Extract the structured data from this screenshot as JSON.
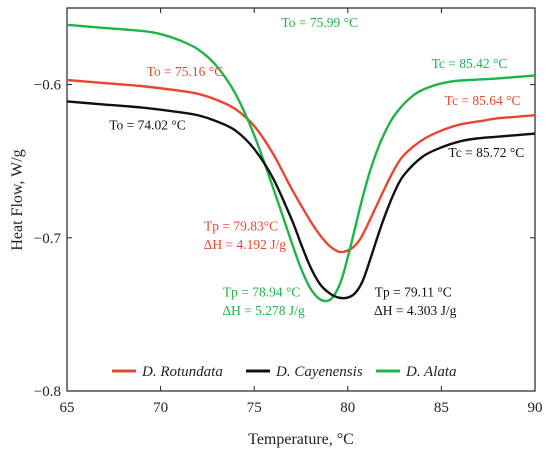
{
  "chart_data": {
    "type": "line",
    "xlabel": "Temperature, °C",
    "ylabel": "Heat Flow, W/g",
    "xlim": [
      65,
      90
    ],
    "ylim": [
      -0.8,
      -0.55
    ],
    "x_ticks": [
      65,
      70,
      75,
      80,
      85,
      90
    ],
    "y_ticks": [
      -0.6,
      -0.7,
      -0.8
    ],
    "x_tick_labels": [
      "65",
      "70",
      "75",
      "80",
      "85",
      "90"
    ],
    "y_tick_labels": [
      "−0.6",
      "−0.7",
      "−0.8"
    ],
    "grid": false,
    "legend_position": "bottom",
    "series": [
      {
        "name": "D. Rotundata",
        "color": "#e8462f",
        "points": [
          [
            65,
            -0.597
          ],
          [
            67,
            -0.599
          ],
          [
            69,
            -0.601
          ],
          [
            71,
            -0.604
          ],
          [
            72,
            -0.606
          ],
          [
            73,
            -0.61
          ],
          [
            74,
            -0.616
          ],
          [
            75,
            -0.627
          ],
          [
            76,
            -0.645
          ],
          [
            77,
            -0.668
          ],
          [
            78,
            -0.689
          ],
          [
            78.5,
            -0.698
          ],
          [
            79,
            -0.705
          ],
          [
            79.5,
            -0.709
          ],
          [
            79.83,
            -0.709
          ],
          [
            80.2,
            -0.707
          ],
          [
            80.6,
            -0.702
          ],
          [
            81,
            -0.693
          ],
          [
            81.5,
            -0.68
          ],
          [
            82,
            -0.667
          ],
          [
            82.5,
            -0.655
          ],
          [
            83,
            -0.646
          ],
          [
            84,
            -0.636
          ],
          [
            85,
            -0.63
          ],
          [
            86,
            -0.626
          ],
          [
            87,
            -0.624
          ],
          [
            88,
            -0.622
          ],
          [
            89,
            -0.621
          ],
          [
            90,
            -0.62
          ]
        ]
      },
      {
        "name": "D. Cayenensis",
        "color": "#111111",
        "points": [
          [
            65,
            -0.611
          ],
          [
            67,
            -0.613
          ],
          [
            69,
            -0.615
          ],
          [
            71,
            -0.618
          ],
          [
            72,
            -0.62
          ],
          [
            73,
            -0.624
          ],
          [
            74,
            -0.63
          ],
          [
            75,
            -0.642
          ],
          [
            76,
            -0.661
          ],
          [
            77,
            -0.688
          ],
          [
            77.5,
            -0.704
          ],
          [
            78,
            -0.719
          ],
          [
            78.5,
            -0.73
          ],
          [
            79,
            -0.736
          ],
          [
            79.5,
            -0.739
          ],
          [
            80,
            -0.739
          ],
          [
            80.4,
            -0.736
          ],
          [
            80.8,
            -0.728
          ],
          [
            81.2,
            -0.714
          ],
          [
            81.6,
            -0.699
          ],
          [
            82,
            -0.685
          ],
          [
            82.5,
            -0.67
          ],
          [
            83,
            -0.659
          ],
          [
            84,
            -0.647
          ],
          [
            85,
            -0.641
          ],
          [
            86,
            -0.637
          ],
          [
            87,
            -0.635
          ],
          [
            88,
            -0.634
          ],
          [
            89,
            -0.633
          ],
          [
            90,
            -0.632
          ]
        ]
      },
      {
        "name": "D. Alata",
        "color": "#1fb34a",
        "points": [
          [
            65,
            -0.561
          ],
          [
            67,
            -0.563
          ],
          [
            69,
            -0.565
          ],
          [
            70,
            -0.567
          ],
          [
            71,
            -0.571
          ],
          [
            72,
            -0.577
          ],
          [
            73,
            -0.588
          ],
          [
            74,
            -0.606
          ],
          [
            75,
            -0.633
          ],
          [
            76,
            -0.667
          ],
          [
            77,
            -0.703
          ],
          [
            77.5,
            -0.72
          ],
          [
            78,
            -0.733
          ],
          [
            78.5,
            -0.74
          ],
          [
            78.94,
            -0.741
          ],
          [
            79.3,
            -0.737
          ],
          [
            79.7,
            -0.726
          ],
          [
            80.2,
            -0.703
          ],
          [
            80.7,
            -0.678
          ],
          [
            81.2,
            -0.656
          ],
          [
            81.8,
            -0.636
          ],
          [
            82.5,
            -0.62
          ],
          [
            83.5,
            -0.607
          ],
          [
            84.5,
            -0.601
          ],
          [
            85.5,
            -0.598
          ],
          [
            86.5,
            -0.597
          ],
          [
            88,
            -0.596
          ],
          [
            90,
            -0.594
          ]
        ]
      }
    ],
    "annotations": [
      {
        "text": "To = 75.99  °C",
        "color": "#1fb34a",
        "x": 78.5,
        "y": -0.559
      },
      {
        "text": "To = 75.16 °C",
        "color": "#e8462f",
        "x": 71.3,
        "y": -0.591
      },
      {
        "text": "To = 74.02 °C",
        "color": "#111111",
        "x": 69.3,
        "y": -0.626
      },
      {
        "text": "Tc = 85.42 °C",
        "color": "#1fb34a",
        "x": 86.5,
        "y": -0.586
      },
      {
        "text": "Tc = 85.64 °C",
        "color": "#e8462f",
        "x": 87.2,
        "y": -0.61
      },
      {
        "text": "Tc = 85.72 °C",
        "color": "#111111",
        "x": 87.4,
        "y": -0.644
      },
      {
        "text": "Tp = 79.83°C",
        "color": "#e8462f",
        "x": 74.3,
        "y": -0.692
      },
      {
        "text": "ΔH = 4.192 J/g",
        "color": "#e8462f",
        "x": 74.5,
        "y": -0.704
      },
      {
        "text": "Tp = 78.94 °C",
        "color": "#1fb34a",
        "x": 75.4,
        "y": -0.735
      },
      {
        "text": "ΔH = 5.278 J/g",
        "color": "#1fb34a",
        "x": 75.5,
        "y": -0.747
      },
      {
        "text": "Tp = 79.11 °C",
        "color": "#111111",
        "x": 83.5,
        "y": -0.735
      },
      {
        "text": "ΔH = 4.303 J/g",
        "color": "#111111",
        "x": 83.6,
        "y": -0.747
      }
    ]
  }
}
